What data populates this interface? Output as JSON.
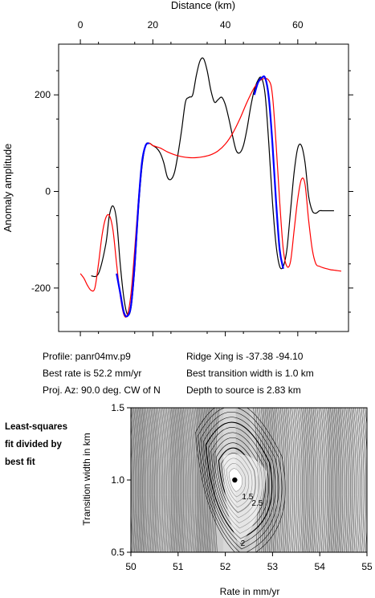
{
  "chart_data": [
    {
      "type": "line",
      "title": "",
      "xlabel": "Distance (km)",
      "ylabel": "Anomaly amplitude",
      "xlim": [
        -6,
        74
      ],
      "ylim": [
        -290,
        305
      ],
      "xticks": [
        0,
        20,
        40,
        60
      ],
      "yticks": [
        -200,
        0,
        200
      ],
      "grid": false,
      "series": [
        {
          "color": "#000000",
          "x": [
            3,
            5,
            7,
            8,
            9,
            10,
            11,
            12,
            13,
            14,
            15,
            16,
            17,
            18,
            19,
            20,
            21,
            22,
            23,
            24,
            25,
            26,
            27,
            28,
            29,
            30,
            31,
            32,
            33,
            34,
            35,
            36,
            37,
            38,
            39,
            40,
            41,
            42,
            43,
            44,
            45,
            46,
            47,
            48,
            49,
            50,
            51,
            52,
            53,
            54,
            55,
            56,
            57,
            58,
            59,
            60,
            61,
            62,
            63,
            64,
            65,
            66,
            67,
            68,
            69,
            70
          ],
          "y": [
            -175,
            -170,
            -110,
            -50,
            -30,
            -60,
            -150,
            -220,
            -255,
            -240,
            -160,
            -40,
            50,
            95,
            100,
            95,
            90,
            80,
            60,
            30,
            25,
            40,
            80,
            130,
            185,
            195,
            200,
            240,
            270,
            275,
            250,
            210,
            185,
            190,
            195,
            180,
            150,
            115,
            85,
            80,
            95,
            130,
            175,
            210,
            230,
            235,
            200,
            100,
            -20,
            -110,
            -155,
            -155,
            -120,
            -40,
            40,
            90,
            95,
            60,
            -10,
            -40,
            -45,
            -40,
            -40,
            -40,
            -40,
            -40
          ]
        },
        {
          "color": "#ff0000",
          "x": [
            0,
            1,
            2,
            3,
            4,
            5,
            6,
            7,
            8,
            9,
            10,
            11,
            12,
            13,
            14,
            15,
            16,
            17,
            18,
            19,
            20,
            22,
            24,
            26,
            28,
            30,
            32,
            34,
            36,
            38,
            40,
            42,
            44,
            46,
            48,
            50,
            52,
            53,
            54,
            55,
            56,
            57,
            58,
            59,
            60,
            61,
            62,
            63,
            64,
            65,
            66,
            67,
            68,
            69,
            70,
            71,
            72
          ],
          "y": [
            -170,
            -180,
            -195,
            -205,
            -200,
            -150,
            -90,
            -55,
            -50,
            -80,
            -150,
            -215,
            -255,
            -255,
            -210,
            -120,
            -20,
            60,
            95,
            100,
            95,
            90,
            82,
            76,
            72,
            70,
            70,
            72,
            76,
            84,
            98,
            120,
            150,
            185,
            215,
            232,
            230,
            200,
            100,
            -20,
            -120,
            -155,
            -145,
            -80,
            -15,
            25,
            15,
            -60,
            -120,
            -150,
            -155,
            -158,
            -160,
            -162,
            -163,
            -164,
            -165
          ]
        },
        {
          "color": "#0000ff",
          "x": [
            10,
            11,
            12,
            13,
            14,
            15,
            16,
            17,
            18,
            19,
            48,
            49,
            50,
            51,
            52,
            53,
            54,
            55,
            56
          ],
          "y": [
            -170,
            -210,
            -250,
            -258,
            -235,
            -150,
            -30,
            60,
            95,
            100,
            200,
            225,
            235,
            235,
            195,
            100,
            -20,
            -120,
            -160
          ]
        }
      ]
    },
    {
      "type": "heatmap",
      "title": "",
      "xlabel": "Rate in mm/yr",
      "ylabel": "Transition width in km",
      "xlim": [
        50,
        55
      ],
      "ylim": [
        0.5,
        1.5
      ],
      "xticks": [
        "50",
        "51",
        "52",
        "53",
        "54",
        "55"
      ],
      "yticks": [
        "0.5",
        "1.0",
        "1.5"
      ],
      "best_fit": {
        "x": 52.2,
        "y": 1.0
      },
      "contour_labels": [
        "1.5",
        "2.5",
        "2"
      ]
    }
  ],
  "profile_info": {
    "profile": "Profile: panr04mv.p9",
    "best_rate": "Best rate is 52.2 mm/yr",
    "proj_az": "Proj. Az: 90.0 deg. CW of N",
    "ridge_xing": "Ridge Xing is -37.38 -94.10",
    "best_transition": "Best transition width is 1.0 km",
    "depth": "Depth to source is   2.83 km"
  },
  "side_label": {
    "line1": "Least-squares",
    "line2": "fit divided by",
    "line3": "best fit"
  }
}
